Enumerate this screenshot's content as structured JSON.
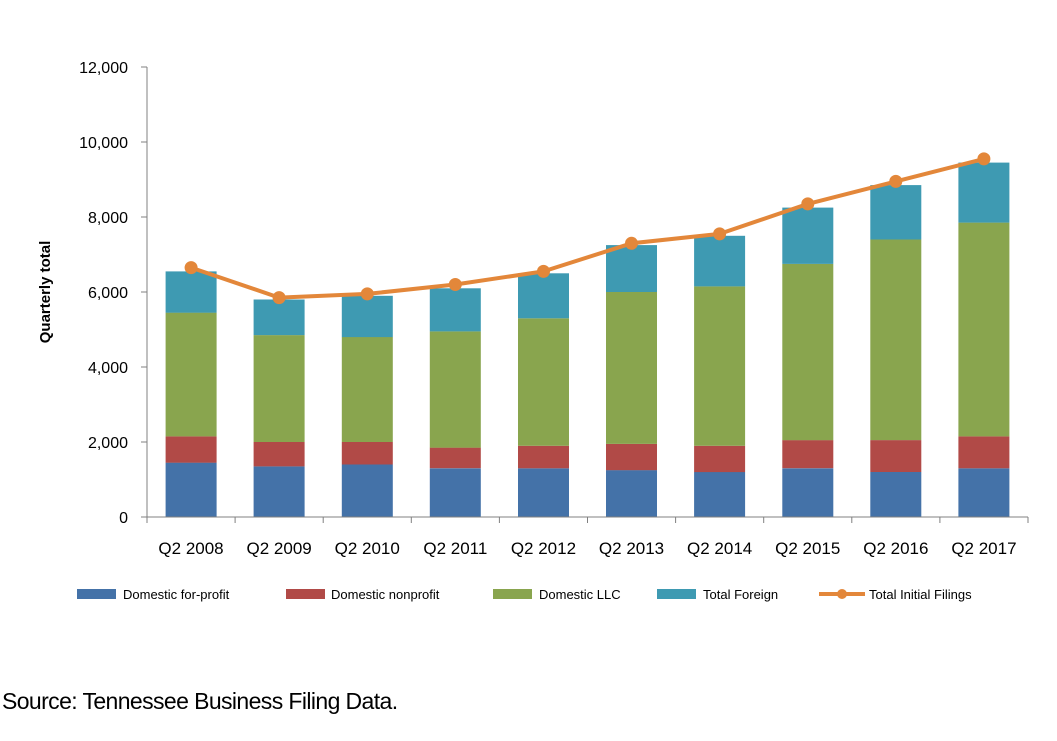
{
  "chart_data": {
    "type": "bar",
    "stacked": true,
    "categories": [
      "Q2 2008",
      "Q2 2009",
      "Q2 2010",
      "Q2 2011",
      "Q2 2012",
      "Q2 2013",
      "Q2 2014",
      "Q2 2015",
      "Q2 2016",
      "Q2 2017"
    ],
    "series": [
      {
        "name": "Domestic for-profit",
        "color": "#4472a8",
        "values": [
          1450,
          1350,
          1400,
          1300,
          1300,
          1250,
          1200,
          1300,
          1200,
          1300
        ]
      },
      {
        "name": "Domestic nonprofit",
        "color": "#b14a47",
        "values": [
          700,
          650,
          600,
          550,
          600,
          700,
          700,
          750,
          850,
          850
        ]
      },
      {
        "name": "Domestic LLC",
        "color": "#89a54e",
        "values": [
          3300,
          2850,
          2800,
          3100,
          3400,
          4050,
          4250,
          4700,
          5350,
          5700
        ]
      },
      {
        "name": "Total Foreign",
        "color": "#3e9ab2",
        "values": [
          1100,
          950,
          1100,
          1150,
          1200,
          1250,
          1350,
          1500,
          1450,
          1600
        ]
      }
    ],
    "line_series": {
      "name": "Total Initial Filings",
      "color": "#e3873a",
      "values": [
        6650,
        5850,
        5950,
        6200,
        6550,
        7300,
        7550,
        8350,
        8950,
        9550
      ]
    },
    "ylabel": "Quarterly total",
    "xlabel": "",
    "ylim": [
      0,
      12000
    ],
    "yticks": [
      0,
      2000,
      4000,
      6000,
      8000,
      10000,
      12000
    ],
    "ytick_labels": [
      "0",
      "2,000",
      "4,000",
      "6,000",
      "8,000",
      "10,000",
      "12,000"
    ],
    "grid": false,
    "legend_position": "bottom"
  },
  "source_text": "Source: Tennessee Business Filing Data."
}
